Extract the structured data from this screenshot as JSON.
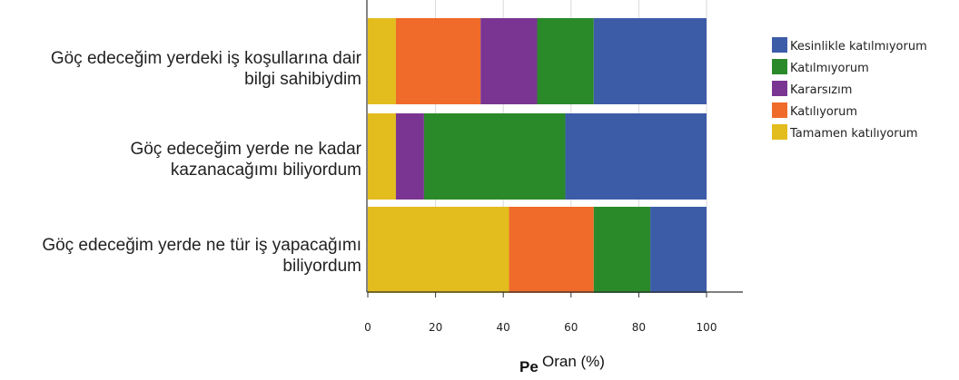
{
  "chart_data": {
    "type": "bar",
    "orientation": "horizontal",
    "stacked": true,
    "categories": [
      [
        "Göç edeceğim yerdeki iş koşullarına dair",
        "bilgi sahibiydim"
      ],
      [
        "Göç edeceğim yerde ne kadar",
        "kazanacağımı biliyordum"
      ],
      [
        "Göç edeceğim yerde ne tür iş yapacağımı",
        "biliyordum"
      ]
    ],
    "series": [
      {
        "name": "Tamamen katılıyorum",
        "color": "#e3bc1e",
        "values": [
          8.3,
          8.3,
          41.7
        ]
      },
      {
        "name": "Katılıyorum",
        "color": "#f06a2a",
        "values": [
          25.0,
          0,
          25.0
        ]
      },
      {
        "name": "Kararsızım",
        "color": "#7a3592",
        "values": [
          16.7,
          8.3,
          0
        ]
      },
      {
        "name": "Katılmıyorum",
        "color": "#2a8a2a",
        "values": [
          16.7,
          41.7,
          16.7
        ]
      },
      {
        "name": "Kesinlikle katılmıyorum",
        "color": "#3d5ca8",
        "values": [
          33.3,
          41.7,
          16.6
        ]
      }
    ],
    "legend_order": [
      "Kesinlikle katılmıyorum",
      "Katılmıyorum",
      "Kararsızım",
      "Katılıyorum",
      "Tamamen katılıyorum"
    ],
    "xlim": [
      0,
      100
    ],
    "xticks": [
      "0",
      "20",
      "40",
      "60",
      "80",
      "100"
    ],
    "xlabel": "Oran (%)",
    "xlabel_hidden_fragment": "Pe",
    "legend_position": "right",
    "grid": "vertical"
  }
}
